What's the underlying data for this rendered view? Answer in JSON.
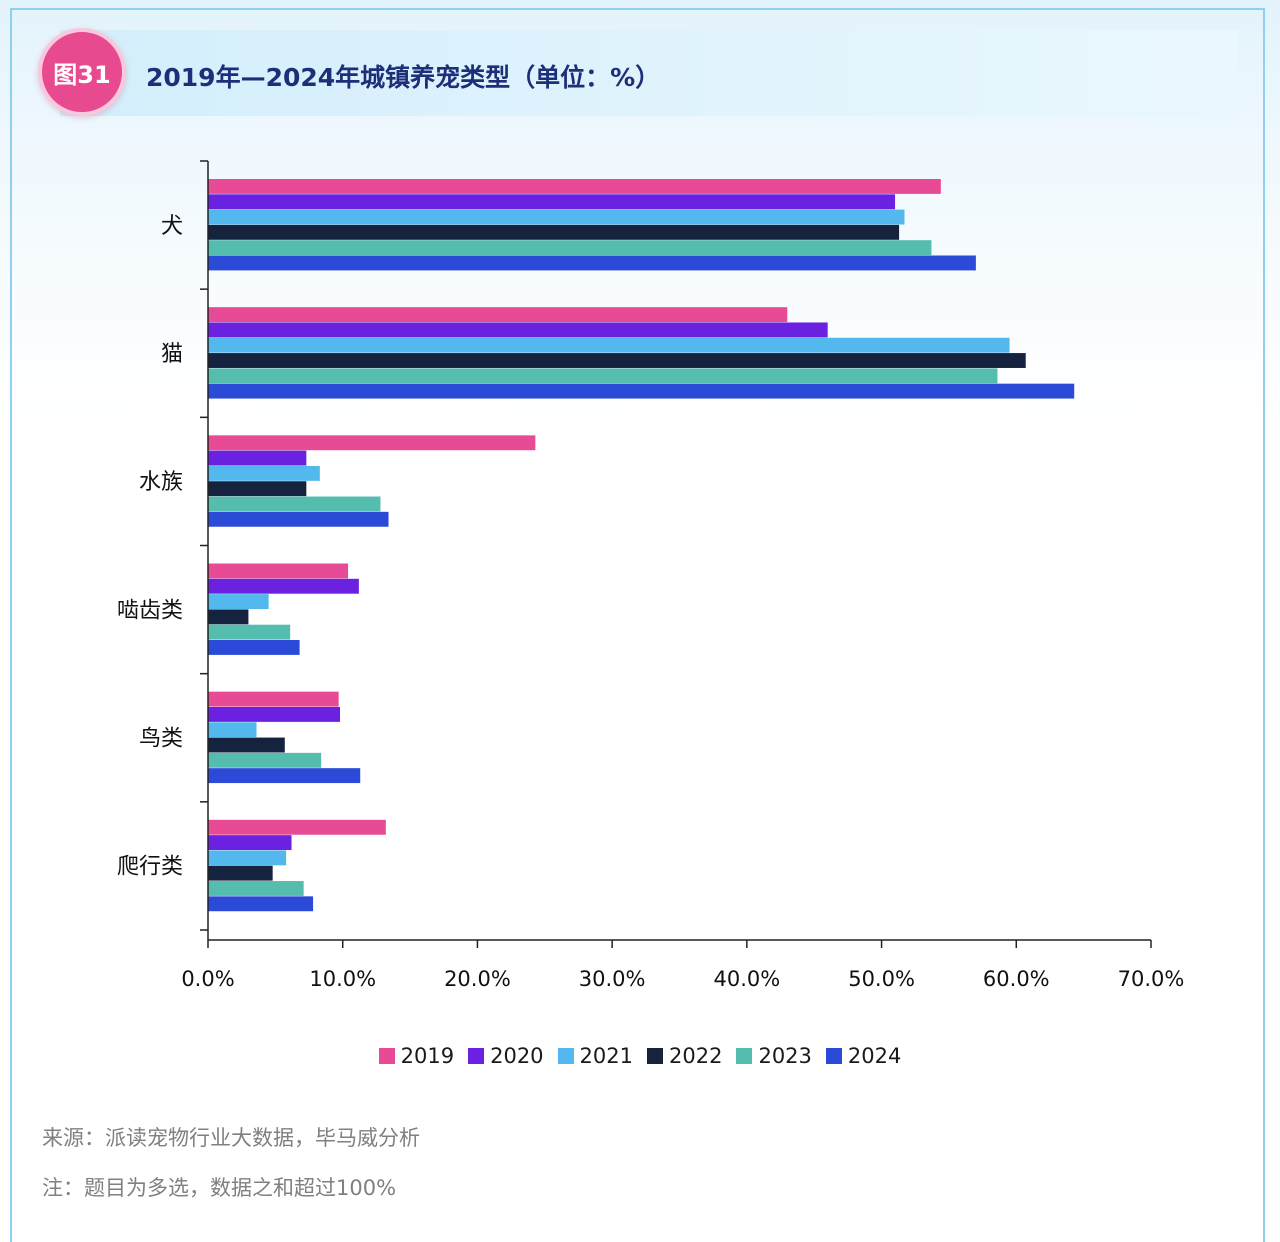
{
  "figure": {
    "badge": "图31",
    "title": "2019年—2024年城镇养宠类型（单位：%）"
  },
  "source": "来源：派读宠物行业大数据，毕马威分析",
  "note": "注：题目为多选，数据之和超过100%",
  "colors": {
    "2019": "#e84b95",
    "2020": "#6a22e0",
    "2021": "#52b8ee",
    "2022": "#16233f",
    "2023": "#54bdae",
    "2024": "#2b4ad8",
    "title": "#1e2f7a",
    "badge": "#e84a8f"
  },
  "chart_data": {
    "type": "bar",
    "orientation": "horizontal",
    "categories": [
      "犬",
      "猫",
      "水族",
      "啮齿类",
      "鸟类",
      "爬行类"
    ],
    "series": [
      {
        "name": "2019",
        "values": [
          54.4,
          43.0,
          24.3,
          10.4,
          9.7,
          13.2
        ]
      },
      {
        "name": "2020",
        "values": [
          51.0,
          46.0,
          7.3,
          11.2,
          9.8,
          6.2
        ]
      },
      {
        "name": "2021",
        "values": [
          51.7,
          59.5,
          8.3,
          4.5,
          3.6,
          5.8
        ]
      },
      {
        "name": "2022",
        "values": [
          51.3,
          60.7,
          7.3,
          3.0,
          5.7,
          4.8
        ]
      },
      {
        "name": "2023",
        "values": [
          53.7,
          58.6,
          12.8,
          6.1,
          8.4,
          7.1
        ]
      },
      {
        "name": "2024",
        "values": [
          57.0,
          64.3,
          13.4,
          6.8,
          11.3,
          7.8
        ]
      }
    ],
    "xlim": [
      0,
      70
    ],
    "xticks": [
      "0.0%",
      "10.0%",
      "20.0%",
      "30.0%",
      "40.0%",
      "50.0%",
      "60.0%",
      "70.0%"
    ],
    "grid": false,
    "legend_position": "bottom"
  }
}
